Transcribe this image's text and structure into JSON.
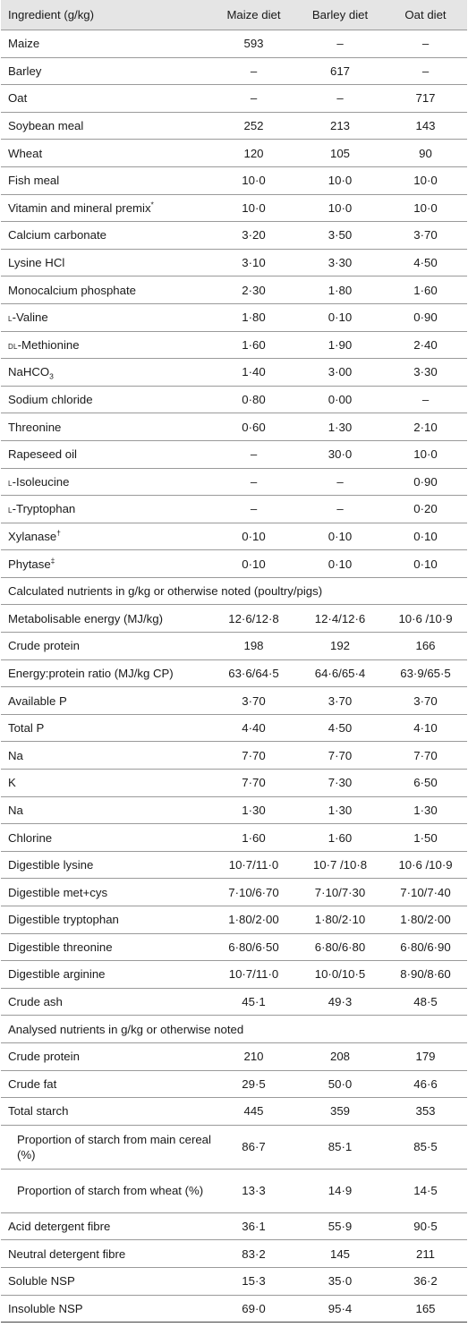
{
  "header": {
    "col1": "Ingredient (g/kg)",
    "col2": "Maize diet",
    "col3": "Barley diet",
    "col4": "Oat diet"
  },
  "rows": [
    {
      "label": "Maize",
      "v": [
        "593",
        "–",
        "–"
      ]
    },
    {
      "label": "Barley",
      "v": [
        "–",
        "617",
        "–"
      ]
    },
    {
      "label": "Oat",
      "v": [
        "–",
        "–",
        "717"
      ]
    },
    {
      "label": "Soybean meal",
      "v": [
        "252",
        "213",
        "143"
      ]
    },
    {
      "label": "Wheat",
      "v": [
        "120",
        "105",
        "90"
      ]
    },
    {
      "label": "Fish meal",
      "v": [
        "10·0",
        "10·0",
        "10·0"
      ]
    },
    {
      "label": "Vitamin and mineral premix",
      "sup": "*",
      "v": [
        "10·0",
        "10·0",
        "10·0"
      ]
    },
    {
      "label": "Calcium carbonate",
      "v": [
        "3·20",
        "3·50",
        "3·70"
      ]
    },
    {
      "label": "Lysine HCl",
      "v": [
        "3·10",
        "3·30",
        "4·50"
      ]
    },
    {
      "label": "Monocalcium phosphate",
      "v": [
        "2·30",
        "1·80",
        "1·60"
      ]
    },
    {
      "prefix": "l",
      "label": "-Valine",
      "v": [
        "1·80",
        "0·10",
        "0·90"
      ]
    },
    {
      "prefix": "dl",
      "label": "-Methionine",
      "v": [
        "1·60",
        "1·90",
        "2·40"
      ]
    },
    {
      "label": "NaHCO",
      "sub": "3",
      "v": [
        "1·40",
        "3·00",
        "3·30"
      ]
    },
    {
      "label": "Sodium chloride",
      "v": [
        "0·80",
        "0·00",
        "–"
      ]
    },
    {
      "label": "Threonine",
      "v": [
        "0·60",
        "1·30",
        "2·10"
      ]
    },
    {
      "label": "Rapeseed oil",
      "v": [
        "–",
        "30·0",
        "10·0"
      ]
    },
    {
      "prefix": "l",
      "label": "-Isoleucine",
      "v": [
        "–",
        "–",
        "0·90"
      ]
    },
    {
      "prefix": "l",
      "label": "-Tryptophan",
      "v": [
        "–",
        "–",
        "0·20"
      ]
    },
    {
      "label": "Xylanase",
      "sup": "†",
      "v": [
        "0·10",
        "0·10",
        "0·10"
      ]
    },
    {
      "label": "Phytase",
      "sup": "‡",
      "v": [
        "0·10",
        "0·10",
        "0·10"
      ]
    }
  ],
  "section_calculated": "Calculated nutrients in g/kg or otherwise noted (poultry/pigs)",
  "calculated_rows": [
    {
      "label": "Metabolisable energy (MJ/kg)",
      "v": [
        "12·6/12·8",
        "12·4/12·6",
        "10·6 /10·9"
      ]
    },
    {
      "label": "Crude protein",
      "v": [
        "198",
        "192",
        "166"
      ]
    },
    {
      "label": "Energy:protein ratio (MJ/kg CP)",
      "v": [
        "63·6/64·5",
        "64·6/65·4",
        "63·9/65·5"
      ]
    },
    {
      "label": "Available P",
      "v": [
        "3·70",
        "3·70",
        "3·70"
      ]
    },
    {
      "label": "Total P",
      "v": [
        "4·40",
        "4·50",
        "4·10"
      ]
    },
    {
      "label": "Na",
      "v": [
        "7·70",
        "7·70",
        "7·70"
      ]
    },
    {
      "label": "K",
      "v": [
        "7·70",
        "7·30",
        "6·50"
      ]
    },
    {
      "label": "Na",
      "v": [
        "1·30",
        "1·30",
        "1·30"
      ]
    },
    {
      "label": "Chlorine",
      "v": [
        "1·60",
        "1·60",
        "1·50"
      ]
    },
    {
      "label": "Digestible lysine",
      "v": [
        "10·7/11·0",
        "10·7 /10·8",
        "10·6 /10·9"
      ]
    },
    {
      "label": "Digestible met+cys",
      "v": [
        "7·10/6·70",
        "7·10/7·30",
        "7·10/7·40"
      ]
    },
    {
      "label": "Digestible tryptophan",
      "v": [
        "1·80/2·00",
        "1·80/2·10",
        "1·80/2·00"
      ]
    },
    {
      "label": "Digestible threonine",
      "v": [
        "6·80/6·50",
        "6·80/6·80",
        "6·80/6·90"
      ]
    },
    {
      "label": "Digestible arginine",
      "v": [
        "10·7/11·0",
        "10·0/10·5",
        "8·90/8·60"
      ]
    },
    {
      "label": "Crude ash",
      "v": [
        "45·1",
        "49·3",
        "48·5"
      ]
    }
  ],
  "section_analysed": "Analysed nutrients in g/kg or otherwise noted",
  "analysed_rows": [
    {
      "label": "Crude protein",
      "v": [
        "210",
        "208",
        "179"
      ]
    },
    {
      "label": "Crude fat",
      "v": [
        "29·5",
        "50·0",
        "46·6"
      ]
    },
    {
      "label": "Total starch",
      "v": [
        "445",
        "359",
        "353"
      ]
    },
    {
      "label": "Proportion of starch from main cereal (%)",
      "indent": true,
      "v": [
        "86·7",
        "85·1",
        "85·5"
      ]
    },
    {
      "label": "Proportion of starch from wheat (%)",
      "indent": true,
      "v": [
        "13·3",
        "14·9",
        "14·5"
      ]
    },
    {
      "label": "Acid detergent fibre",
      "v": [
        "36·1",
        "55·9",
        "90·5"
      ]
    },
    {
      "label": "Neutral detergent fibre",
      "v": [
        "83·2",
        "145",
        "211"
      ]
    },
    {
      "label": "Soluble NSP",
      "v": [
        "15·3",
        "35·0",
        "36·2"
      ]
    },
    {
      "label": "Insoluble NSP",
      "v": [
        "69·0",
        "95·4",
        "165"
      ]
    }
  ]
}
